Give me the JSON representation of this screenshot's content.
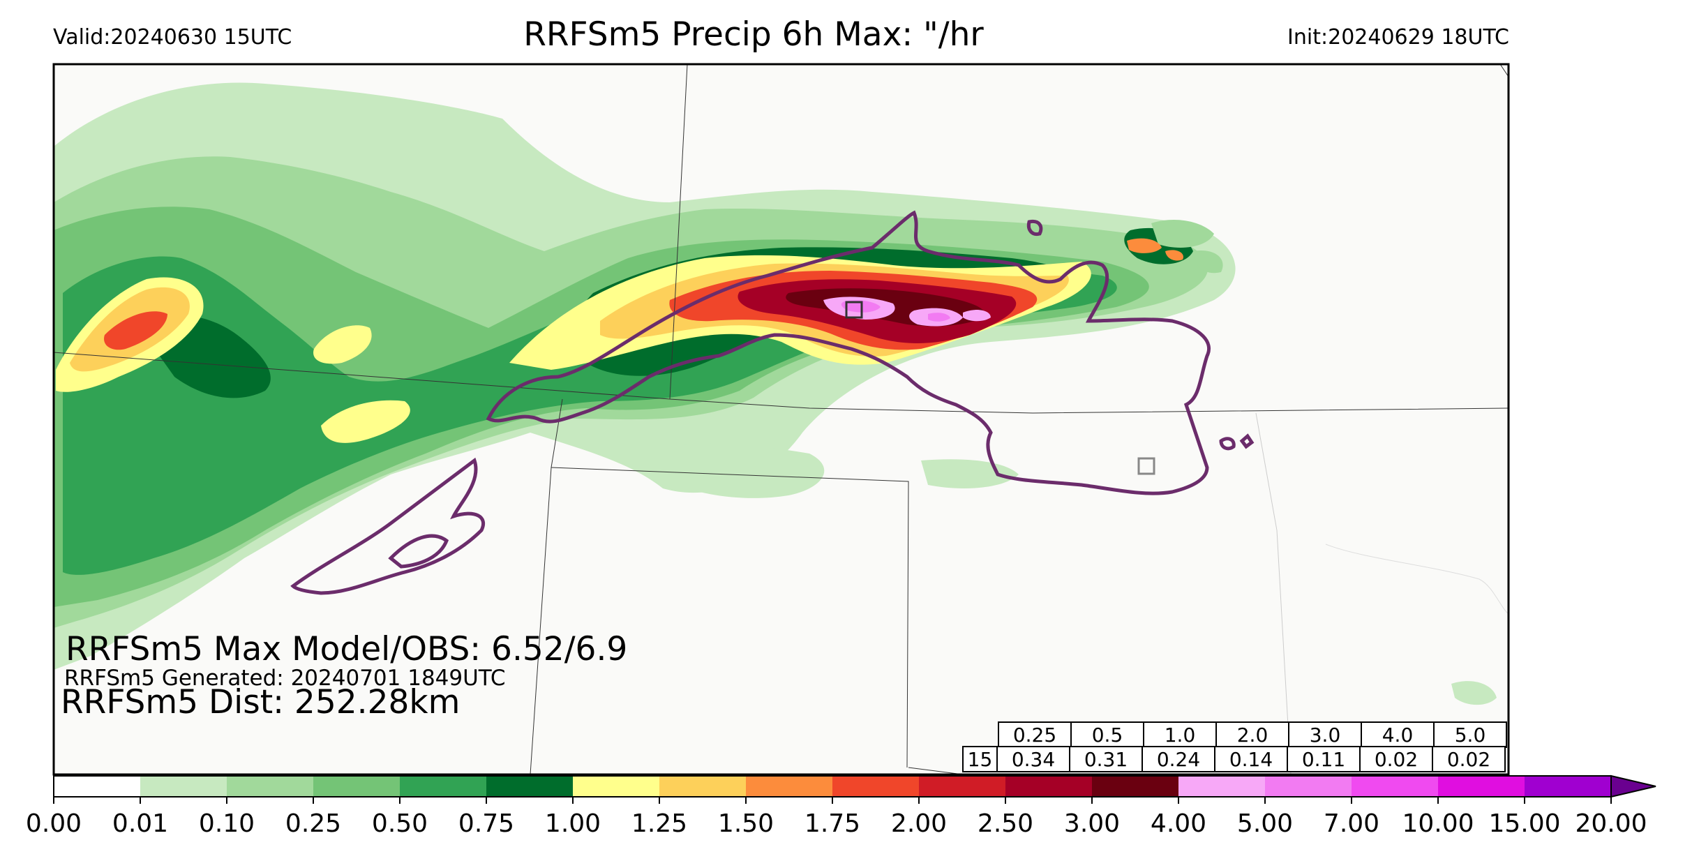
{
  "header": {
    "valid": "Valid:20240630 15UTC",
    "title": "RRFSm5 Precip 6h Max: \"/hr",
    "init": "Init:20240629 18UTC"
  },
  "annotations": {
    "max_model_obs": "RRFSm5 Max Model/OBS: 6.52/6.9",
    "generated": "RRFSm5 Generated: 20240701 1849UTC",
    "distance": "RRFSm5 Dist: 252.28km"
  },
  "threshold_table": {
    "thresholds": [
      "0.25",
      "0.5",
      "1.0",
      "2.0",
      "3.0",
      "4.0",
      "5.0"
    ],
    "row_label": "15",
    "values": [
      "0.34",
      "0.31",
      "0.24",
      "0.14",
      "0.11",
      "0.02",
      "0.02"
    ]
  },
  "colorbar": {
    "ticks": [
      "0.00",
      "0.01",
      "0.10",
      "0.25",
      "0.50",
      "0.75",
      "1.00",
      "1.25",
      "1.50",
      "1.75",
      "2.00",
      "2.50",
      "3.00",
      "4.00",
      "5.00",
      "7.00",
      "10.00",
      "15.00",
      "20.00"
    ],
    "colors": [
      "#ffffff",
      "#c7e9c0",
      "#a1d99b",
      "#74c476",
      "#31a354",
      "#006d2c",
      "#ffff8c",
      "#fdd05a",
      "#fc8c3c",
      "#f0462a",
      "#d01c26",
      "#a50026",
      "#6a0010",
      "#f7a8f7",
      "#f27bf2",
      "#f04af0",
      "#e00ee0",
      "#a000d0"
    ],
    "extend_color": "#6a0090"
  },
  "colors": {
    "contour": "#6b2c6b",
    "land": "#fafaf8",
    "frame": "#000000"
  }
}
